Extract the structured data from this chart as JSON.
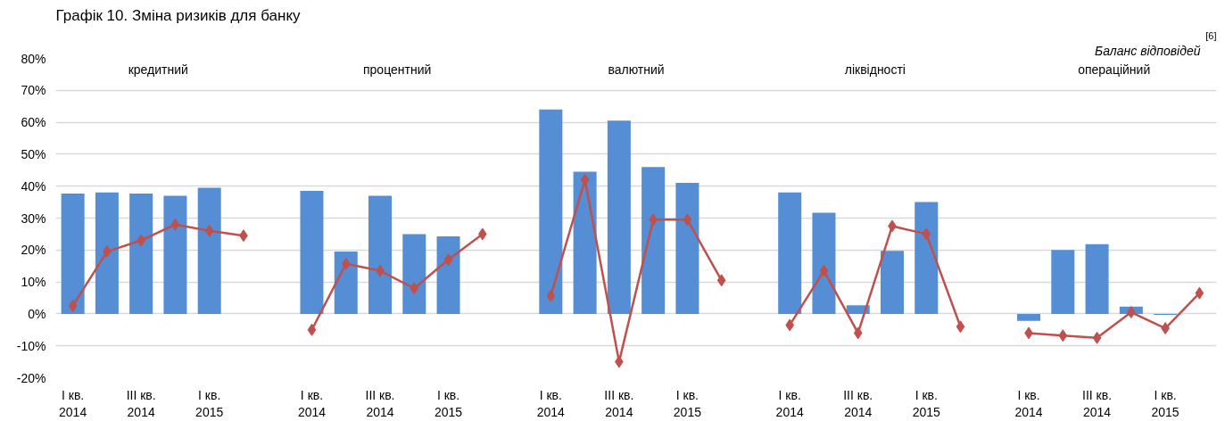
{
  "chart_data": {
    "type": "bar",
    "title": "Графік 10. Зміна ризиків для банку",
    "subtitle": "Баланс відповідей$^{[6]}$",
    "annotations": [
      "кредитний",
      "процентний",
      "валютний",
      "ліквідності",
      "операційний"
    ],
    "categories": [
      "I кв.\n2014",
      null,
      "III кв.\n2014",
      null,
      "I кв.\n2015",
      null,
      null,
      "I кв.\n2014",
      null,
      "III кв.\n2014",
      null,
      "I кв.\n2015",
      null,
      null,
      "I кв.\n2014",
      null,
      "III кв.\n2014",
      null,
      "I кв.\n2015",
      null,
      null,
      "I кв.\n2014",
      null,
      "III кв.\n2014",
      null,
      "I кв.\n2015",
      null,
      null,
      "I кв.\n2014",
      null,
      "III кв.\n2014",
      null,
      "I кв.\n2015",
      null
    ],
    "series": [
      {
        "color": "#558ed5",
        "values": [
          37.7,
          38,
          37.7,
          37,
          39.5,
          null,
          null,
          38.5,
          19.5,
          37,
          25,
          24.3,
          null,
          null,
          64,
          44.5,
          60.5,
          46,
          41,
          null,
          null,
          38,
          31.7,
          2.7,
          19.7,
          35,
          null,
          null,
          -2.2,
          20,
          21.8,
          2.3,
          -0.3,
          null
        ]
      },
      {
        "type": "line",
        "color": "#c0504d",
        "marker": "diamond",
        "line_style": "solid",
        "values": [
          2.5,
          19.5,
          23,
          28,
          26,
          24.5,
          null,
          -5,
          15.7,
          13.5,
          8,
          17,
          25,
          null,
          5.7,
          42,
          -15,
          29.5,
          29.5,
          10.5,
          null,
          -3.5,
          13.5,
          -6,
          27.5,
          25,
          -4,
          null,
          -6,
          -6.8,
          -7.5,
          0.5,
          -4.5,
          6.5
        ]
      }
    ],
    "ylim": [
      -20,
      80
    ],
    "yticks": [
      {
        "value": -20,
        "label": "-20%"
      },
      {
        "value": -10,
        "label": "-10%"
      },
      {
        "value": 0,
        "label": "0%"
      },
      {
        "value": 10,
        "label": "10%"
      },
      {
        "value": 20,
        "label": "20%"
      },
      {
        "value": 30,
        "label": "30%"
      },
      {
        "value": 40,
        "label": "40%"
      },
      {
        "value": 50,
        "label": "50%"
      },
      {
        "value": 60,
        "label": "60%"
      },
      {
        "value": 70,
        "label": "70%"
      },
      {
        "value": 80,
        "label": "80%"
      }
    ],
    "grid": "y"
  }
}
